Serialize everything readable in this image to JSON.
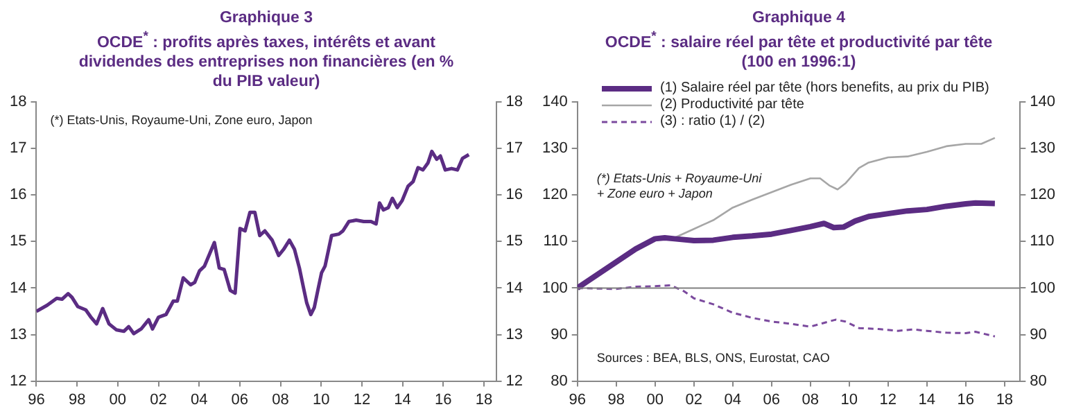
{
  "chart_data": [
    {
      "type": "line",
      "title": "Graphique 3",
      "subtitle": "OCDE$^{*}$ : profits après taxes, intérêts et avant dividendes des entreprises non financières (en % du PIB valeur)",
      "annotations": [
        "(*) Etats-Unis, Royaume-Uni, Zone euro, Japon"
      ],
      "series": [
        {
          "color": "#5b2c83",
          "x": [
            1996,
            1996.53,
            1997,
            1997.26,
            1997.56,
            1997.75,
            1998.04,
            1998.43,
            1998.67,
            1998.96,
            1999.26,
            1999.57,
            1999.94,
            2000.3,
            2000.54,
            2000.79,
            2001.15,
            2001.52,
            2001.71,
            2002,
            2002.37,
            2002.73,
            2002.93,
            2003.22,
            2003.58,
            2003.78,
            2004.02,
            2004.26,
            2004.5,
            2004.75,
            2004.99,
            2005.23,
            2005.53,
            2005.77,
            2006.01,
            2006.26,
            2006.5,
            2006.74,
            2006.98,
            2007.23,
            2007.59,
            2007.91,
            2008.15,
            2008.44,
            2008.69,
            2008.93,
            2009.12,
            2009.29,
            2009.49,
            2009.66,
            2009.85,
            2010.02,
            2010.19,
            2010.51,
            2010.87,
            2011.07,
            2011.36,
            2011.72,
            2012.09,
            2012.45,
            2012.7,
            2012.87,
            2013.06,
            2013.3,
            2013.5,
            2013.74,
            2013.98,
            2014.27,
            2014.52,
            2014.76,
            2015,
            2015.25,
            2015.44,
            2015.68,
            2015.86,
            2016.1,
            2016.41,
            2016.7,
            2016.95,
            2017.26
          ],
          "values": [
            13.5,
            13.63,
            13.78,
            13.76,
            13.88,
            13.8,
            13.6,
            13.53,
            13.38,
            13.23,
            13.56,
            13.23,
            13.1,
            13.07,
            13.17,
            13.02,
            13.12,
            13.32,
            13.12,
            13.37,
            13.43,
            13.72,
            13.72,
            14.22,
            14.07,
            14.12,
            14.37,
            14.47,
            14.72,
            14.98,
            14.43,
            14.4,
            13.95,
            13.89,
            15.28,
            15.23,
            15.63,
            15.63,
            15.13,
            15.23,
            15.03,
            14.7,
            14.83,
            15.03,
            14.83,
            14.43,
            14.03,
            13.68,
            13.43,
            13.58,
            13.98,
            14.33,
            14.47,
            15.13,
            15.16,
            15.23,
            15.43,
            15.46,
            15.43,
            15.43,
            15.38,
            15.83,
            15.68,
            15.73,
            15.93,
            15.73,
            15.88,
            16.19,
            16.29,
            16.59,
            16.54,
            16.69,
            16.94,
            16.77,
            16.84,
            16.54,
            16.57,
            16.54,
            16.79,
            16.87
          ]
        }
      ],
      "xlim": [
        1996,
        2018.6
      ],
      "xticks": [
        {
          "value": 1996,
          "label": "96"
        },
        {
          "value": 1998,
          "label": "98"
        },
        {
          "value": 2000,
          "label": "00"
        },
        {
          "value": 2002,
          "label": "02"
        },
        {
          "value": 2004,
          "label": "04"
        },
        {
          "value": 2006,
          "label": "06"
        },
        {
          "value": 2008,
          "label": "08"
        },
        {
          "value": 2010,
          "label": "10"
        },
        {
          "value": 2012,
          "label": "12"
        },
        {
          "value": 2014,
          "label": "14"
        },
        {
          "value": 2016,
          "label": "16"
        },
        {
          "value": 2018,
          "label": "18"
        }
      ],
      "ylim": [
        12,
        18
      ],
      "yticks": [
        12,
        13,
        14,
        15,
        16,
        17,
        18
      ],
      "y2lim": [
        12,
        18
      ],
      "y2ticks": [
        12,
        13,
        14,
        15,
        16,
        17,
        18
      ],
      "grid": false,
      "legend": false,
      "marker": "none"
    },
    {
      "type": "line",
      "title": "Graphique 4",
      "subtitle": "OCDE$^{*}$ : salaire réel par tête et productivité par tête (100 en 1996:1)",
      "annotations": [
        "(*) Etats-Unis + Royaume-Uni\n+ Zone euro + Japon",
        "Sources : BEA, BLS, ONS, Eurostat, CAO"
      ],
      "series": [
        {
          "name": "(1) Salaire réel par tête (hors benefits, au prix du PIB)",
          "color": "#5b2c83",
          "line_style": "solid",
          "x": [
            1996,
            1997,
            1998,
            1999,
            2000,
            2000.5,
            2001,
            2002,
            2003,
            2004,
            2005,
            2006,
            2007,
            2008,
            2008.7,
            2009.2,
            2009.7,
            2010.3,
            2011,
            2012,
            2013,
            2014,
            2015,
            2016,
            2016.5,
            2017.5
          ],
          "values": [
            100,
            102.8,
            105.6,
            108.4,
            110.6,
            110.8,
            110.6,
            110.2,
            110.3,
            110.9,
            111.2,
            111.6,
            112.4,
            113.2,
            113.9,
            113,
            113.1,
            114.4,
            115.4,
            116,
            116.6,
            116.9,
            117.6,
            118.1,
            118.3,
            118.2
          ]
        },
        {
          "name": "(2) Productivité par tête",
          "color": "#a6a6a6",
          "line_style": "solid",
          "x": [
            1996,
            1997,
            1998,
            1999,
            2000,
            2001,
            2002,
            2003,
            2004,
            2005,
            2006,
            2007,
            2008,
            2008.5,
            2009,
            2009.4,
            2009.8,
            2010.5,
            2011,
            2012,
            2013,
            2014,
            2015,
            2016,
            2016.8,
            2017.5
          ],
          "values": [
            100,
            102.6,
            105.3,
            108,
            110.5,
            110.8,
            112.7,
            114.6,
            117.3,
            119,
            120.6,
            122.2,
            123.6,
            123.6,
            122,
            121.2,
            122.5,
            125.8,
            127,
            128.1,
            128.3,
            129.3,
            130.5,
            131,
            131,
            132.3
          ]
        },
        {
          "name": "(3) : ratio (1) / (2)",
          "color": "#7b4a9e",
          "line_style": "dashed",
          "x": [
            1996,
            1998,
            1999,
            2000,
            2000.8,
            2001.5,
            2002,
            2003,
            2004,
            2005,
            2006,
            2007,
            2008,
            2008.6,
            2009.3,
            2009.8,
            2010.5,
            2011.5,
            2012.5,
            2013.3,
            2014,
            2015,
            2016,
            2016.5,
            2017.5
          ],
          "values": [
            100,
            99.8,
            100.3,
            100.4,
            100.6,
            99.3,
            97.8,
            96.5,
            94.7,
            93.6,
            92.8,
            92.3,
            91.7,
            92.4,
            93.2,
            92.8,
            91.4,
            91.2,
            90.8,
            91.1,
            90.8,
            90.4,
            90.3,
            90.6,
            89.6
          ]
        }
      ],
      "ref_lines": [
        {
          "axis": "y",
          "value": 100,
          "color": "#808080"
        }
      ],
      "xlim": [
        1996,
        2018.8
      ],
      "xticks": [
        {
          "value": 1996,
          "label": "96"
        },
        {
          "value": 1998,
          "label": "98"
        },
        {
          "value": 2000,
          "label": "00"
        },
        {
          "value": 2002,
          "label": "02"
        },
        {
          "value": 2004,
          "label": "04"
        },
        {
          "value": 2006,
          "label": "06"
        },
        {
          "value": 2008,
          "label": "08"
        },
        {
          "value": 2010,
          "label": "10"
        },
        {
          "value": 2012,
          "label": "12"
        },
        {
          "value": 2014,
          "label": "14"
        },
        {
          "value": 2016,
          "label": "16"
        },
        {
          "value": 2018,
          "label": "18"
        }
      ],
      "ylim": [
        80,
        140
      ],
      "yticks": [
        80,
        90,
        100,
        110,
        120,
        130,
        140
      ],
      "y2lim": [
        80,
        140
      ],
      "y2ticks": [
        80,
        90,
        100,
        110,
        120,
        130,
        140
      ],
      "grid": false,
      "legend": "top left",
      "marker": "none"
    }
  ]
}
